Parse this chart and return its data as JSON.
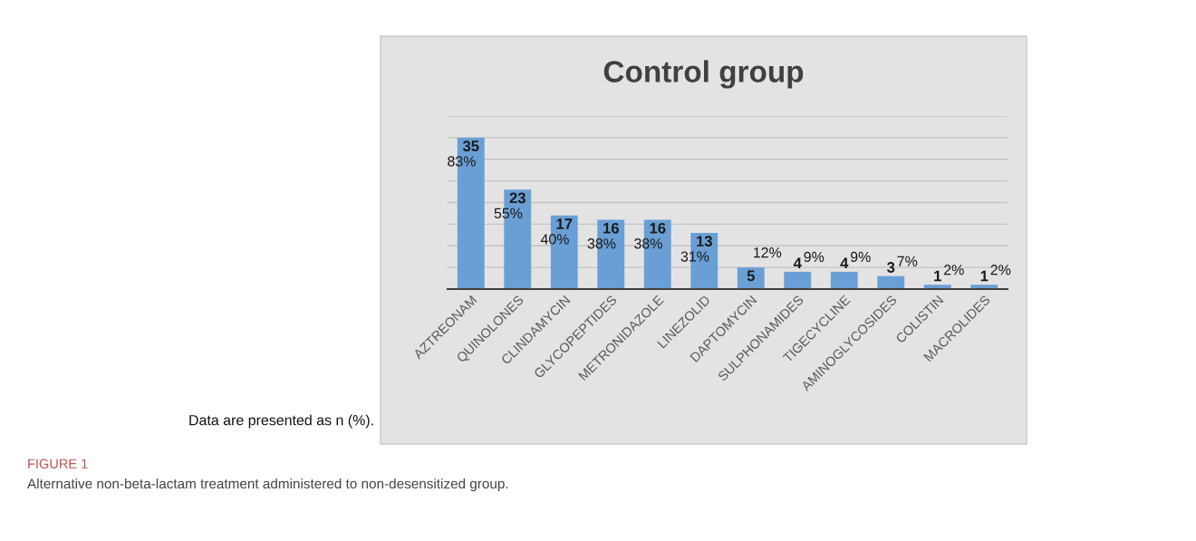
{
  "chart_data": {
    "type": "bar",
    "title": "Control group",
    "categories": [
      "AZTREONAM",
      "QUINOLONES",
      "CLINDAMYCIN",
      "GLYCOPEPTIDES",
      "METRONIDAZOLE",
      "LINEZOLID",
      "DAPTOMYCIN",
      "SULPHONAMIDES",
      "TIGECYCLINE",
      "AMINOGLYCOSIDES",
      "COLISTIN",
      "MACROLIDES"
    ],
    "values": [
      35,
      23,
      17,
      16,
      16,
      13,
      5,
      4,
      4,
      3,
      1,
      1
    ],
    "color": "#6a9fd6",
    "data_labels": true,
    "ylim": [
      0,
      40
    ],
    "yticks": [
      {
        "value": 0,
        "label": null
      },
      {
        "value": 5,
        "label": null
      },
      {
        "value": 10,
        "label": null
      },
      {
        "value": 15,
        "label": null
      },
      {
        "value": 20,
        "label": null
      },
      {
        "value": 25,
        "label": null
      },
      {
        "value": 30,
        "label": null
      },
      {
        "value": 35,
        "label": null
      },
      {
        "value": 40,
        "label": null
      }
    ],
    "grid": "y",
    "annotations": [
      {
        "text": "83%",
        "x": "AZTREONAM",
        "y": 35
      },
      {
        "text": "55%",
        "x": "QUINOLONES",
        "y": 23
      },
      {
        "text": "40%",
        "x": "CLINDAMYCIN",
        "y": 17
      },
      {
        "text": "38%",
        "x": "GLYCOPEPTIDES",
        "y": 16
      },
      {
        "text": "38%",
        "x": "METRONIDAZOLE",
        "y": 16
      },
      {
        "text": "31%",
        "x": "LINEZOLID",
        "y": 13
      },
      {
        "text": "12%",
        "x": "DAPTOMYCIN",
        "y": 5
      },
      {
        "text": "9%",
        "x": "SULPHONAMIDES",
        "y": 4
      },
      {
        "text": "9%",
        "x": "TIGECYCLINE",
        "y": 4
      },
      {
        "text": "7%",
        "x": "AMINOGLYCOSIDES",
        "y": 3
      },
      {
        "text": "2%",
        "x": "COLISTIN",
        "y": 1
      },
      {
        "text": "2%",
        "x": "MACROLIDES",
        "y": 1
      },
      "Data are presented as n (%).",
      "FIGURE 1",
      "Alternative non-beta-lactam treatment administered to non-desensitized group."
    ]
  }
}
